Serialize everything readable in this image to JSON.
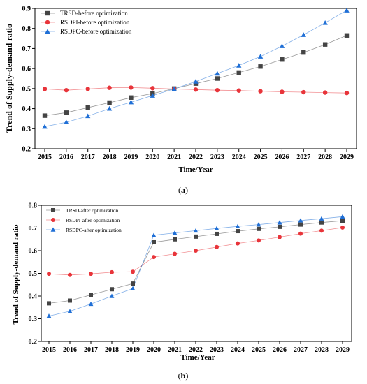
{
  "chart_data": [
    {
      "type": "line",
      "panel_label": "(a)",
      "panel_letter": "a",
      "xlabel": "Time/Year",
      "ylabel": "Trend of Supply-demand ratio",
      "x": [
        2015,
        2016,
        2017,
        2018,
        2019,
        2020,
        2021,
        2022,
        2023,
        2024,
        2025,
        2026,
        2027,
        2028,
        2029
      ],
      "ylim": [
        0.2,
        0.9
      ],
      "yticks": [
        "0.2",
        "0.3",
        "0.4",
        "0.5",
        "0.6",
        "0.7",
        "0.8",
        "0.9"
      ],
      "grid": false,
      "legend": "top-left",
      "series": [
        {
          "name": "TRSD-before optimization",
          "color": "#444444",
          "marker": "square",
          "values": [
            0.365,
            0.38,
            0.405,
            0.43,
            0.455,
            0.475,
            0.5,
            0.525,
            0.55,
            0.58,
            0.61,
            0.645,
            0.68,
            0.72,
            0.765
          ]
        },
        {
          "name": "RSDPI-before optimization",
          "color": "#e8343a",
          "marker": "circle",
          "values": [
            0.498,
            0.492,
            0.498,
            0.504,
            0.505,
            0.502,
            0.498,
            0.495,
            0.492,
            0.49,
            0.487,
            0.484,
            0.482,
            0.48,
            0.478
          ]
        },
        {
          "name": "RSDPC-before optimization",
          "color": "#1f6fd6",
          "marker": "triangle",
          "values": [
            0.31,
            0.332,
            0.363,
            0.4,
            0.432,
            0.465,
            0.498,
            0.535,
            0.575,
            0.615,
            0.66,
            0.712,
            0.768,
            0.828,
            0.89
          ]
        }
      ]
    },
    {
      "type": "line",
      "panel_label": "(b)",
      "panel_letter": "b",
      "xlabel": "Time/Year",
      "ylabel": "Trend of Supply-demand ratio",
      "x": [
        2015,
        2016,
        2017,
        2018,
        2019,
        2020,
        2021,
        2022,
        2023,
        2024,
        2025,
        2026,
        2027,
        2028,
        2029
      ],
      "ylim": [
        0.2,
        0.8
      ],
      "yticks": [
        "0.2",
        "0.3",
        "0.4",
        "0.5",
        "0.6",
        "0.7",
        "0.8"
      ],
      "grid": false,
      "legend": "top-left",
      "series": [
        {
          "name": "TRSD-after optimization",
          "color": "#444444",
          "marker": "square",
          "values": [
            0.368,
            0.38,
            0.405,
            0.43,
            0.455,
            0.637,
            0.65,
            0.662,
            0.674,
            0.686,
            0.696,
            0.705,
            0.715,
            0.724,
            0.732
          ]
        },
        {
          "name": "RSDPI-after optimization",
          "color": "#e8343a",
          "marker": "circle",
          "values": [
            0.498,
            0.493,
            0.498,
            0.505,
            0.507,
            0.572,
            0.586,
            0.6,
            0.616,
            0.632,
            0.645,
            0.66,
            0.675,
            0.688,
            0.702
          ]
        },
        {
          "name": "RSDPC-after optimization",
          "color": "#1f6fd6",
          "marker": "triangle",
          "values": [
            0.312,
            0.333,
            0.365,
            0.4,
            0.433,
            0.668,
            0.678,
            0.688,
            0.698,
            0.707,
            0.715,
            0.724,
            0.733,
            0.741,
            0.75
          ]
        }
      ]
    }
  ]
}
